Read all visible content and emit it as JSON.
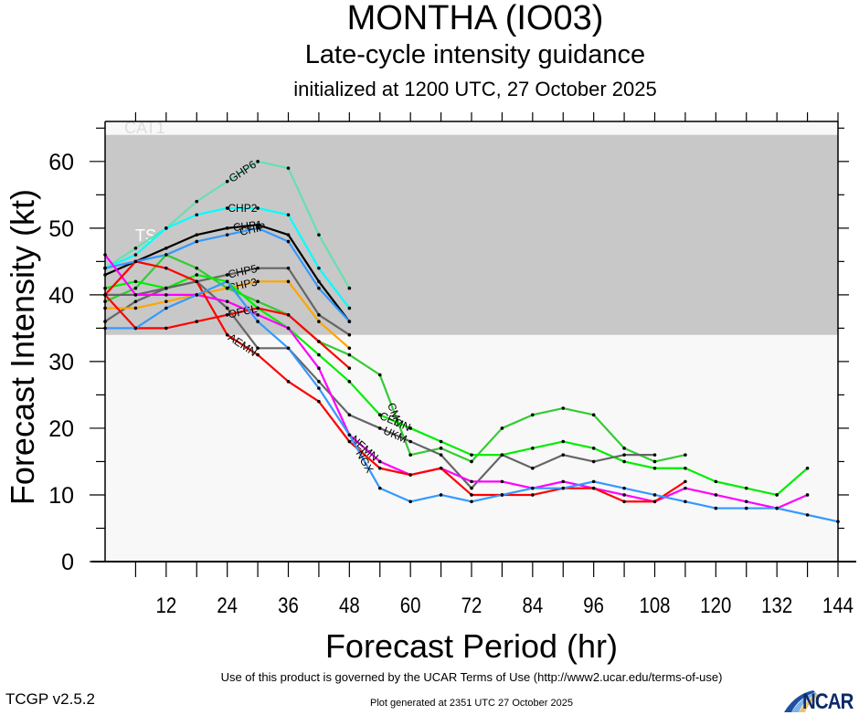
{
  "header": {
    "title": "MONTHA (IO03)",
    "subtitle": "Late-cycle intensity guidance",
    "initialized": "initialized at 1200 UTC, 27 October 2025"
  },
  "footer": {
    "terms": "Use of this product is governed by the UCAR Terms of Use (http://www2.ucar.edu/terms-of-use)",
    "generated": "Plot generated at 2351 UTC   27 October 2025",
    "version": "TCGP v2.5.2",
    "logo": "NCAR"
  },
  "chart_data": {
    "type": "line",
    "title": "MONTHA (IO03)",
    "xlabel": "Forecast Period (hr)",
    "ylabel": "Forecast Intensity (kt)",
    "xlim": [
      0,
      144
    ],
    "ylim": [
      0,
      66
    ],
    "x_ticks": [
      12,
      24,
      36,
      48,
      60,
      72,
      84,
      96,
      108,
      120,
      132,
      144
    ],
    "y_ticks": [
      0,
      10,
      20,
      30,
      40,
      50,
      60
    ],
    "bands": [
      {
        "label": "TS",
        "from": 34,
        "to": 64,
        "color": "#c8c8c8"
      },
      {
        "label": "CAT1",
        "from": 64,
        "to": 66,
        "color": "#f8f8f8"
      }
    ],
    "below_band_color": "#f8f8f8",
    "series": [
      {
        "name": "GHP6",
        "color": "#66e0b0",
        "label_at": 24,
        "x": [
          0,
          6,
          12,
          18,
          24,
          30,
          36,
          42,
          48
        ],
        "y": [
          44,
          47,
          50,
          54,
          57,
          60,
          59,
          49,
          41
        ]
      },
      {
        "name": "CHP2",
        "color": "#00ffff",
        "label_at": 27,
        "x": [
          0,
          6,
          12,
          18,
          24,
          30,
          36,
          42,
          48
        ],
        "y": [
          44,
          46,
          50,
          52,
          53,
          53,
          52,
          44,
          38
        ]
      },
      {
        "name": "CHP1",
        "color": "#000000",
        "label_at": 28,
        "x": [
          0,
          6,
          12,
          18,
          24,
          30,
          36,
          42,
          48
        ],
        "y": [
          43,
          45,
          47,
          49,
          50,
          50.5,
          49,
          42,
          36
        ]
      },
      {
        "name": "CHIP",
        "color": "#3399ff",
        "label_at": 29,
        "x": [
          0,
          6,
          12,
          18,
          24,
          30,
          36,
          42,
          48
        ],
        "y": [
          44,
          45,
          46,
          48,
          49,
          50,
          48,
          41,
          36
        ]
      },
      {
        "name": "CHP5",
        "color": "#666666",
        "label_at": 27,
        "x": [
          0,
          6,
          12,
          18,
          24,
          30,
          36,
          42,
          48
        ],
        "y": [
          36,
          39,
          41,
          42,
          43,
          44,
          44,
          37,
          34
        ]
      },
      {
        "name": "CHP3",
        "color": "#ffa500",
        "label_at": 27,
        "x": [
          0,
          6,
          12,
          18,
          24,
          30,
          36,
          42,
          48
        ],
        "y": [
          38,
          38,
          39,
          40,
          41,
          42,
          42,
          36,
          32
        ]
      },
      {
        "name": "CMC",
        "color": "#33cc33",
        "label_at": 54,
        "x": [
          0,
          6,
          12,
          18,
          24,
          30,
          36,
          42,
          48,
          54,
          60,
          66,
          72,
          78,
          84,
          90,
          96,
          102,
          108,
          114
        ],
        "y": [
          39,
          41,
          46,
          44,
          41,
          39,
          37,
          33,
          31,
          28,
          16,
          17,
          15,
          20,
          22,
          23,
          22,
          17,
          15,
          16
        ]
      },
      {
        "name": "CEMN",
        "color": "#00ee00",
        "label_at": 57,
        "x": [
          0,
          6,
          12,
          18,
          24,
          30,
          36,
          42,
          48,
          54,
          60,
          66,
          72,
          78,
          84,
          90,
          96,
          102,
          108,
          114,
          120,
          126,
          132,
          138
        ],
        "y": [
          41,
          42,
          41,
          43,
          42,
          38,
          35,
          31,
          27,
          22,
          20,
          18,
          16,
          16,
          17,
          18,
          17,
          15,
          14,
          14,
          12,
          11,
          10,
          14
        ]
      },
      {
        "name": "UKM",
        "color": "#666666",
        "label_at": 57,
        "x": [
          0,
          6,
          12,
          18,
          24,
          30,
          36,
          42,
          48,
          54,
          60,
          66,
          72,
          78,
          84,
          90,
          96,
          102,
          108
        ],
        "y": [
          40,
          40,
          41,
          42,
          38,
          32,
          32,
          27,
          22,
          20,
          18,
          16,
          11,
          16,
          14,
          16,
          15,
          16,
          16
        ]
      },
      {
        "name": "NEMN",
        "color": "#ff00ff",
        "label_at": 48,
        "x": [
          0,
          6,
          12,
          18,
          24,
          30,
          36,
          42,
          48,
          54,
          60,
          66,
          72,
          78,
          84,
          90,
          96,
          102,
          108,
          114,
          120,
          126,
          132,
          138
        ],
        "y": [
          46,
          40,
          40,
          40,
          39,
          37,
          35,
          29,
          19,
          15,
          13,
          14,
          12,
          12,
          11,
          12,
          11,
          10,
          9,
          11,
          10,
          9,
          8,
          10
        ]
      },
      {
        "name": "AEMN",
        "color": "#ff0000",
        "label_at": 24,
        "x": [
          0,
          6,
          12,
          18,
          24,
          30,
          36,
          42,
          48,
          54,
          60,
          66,
          72,
          78,
          84,
          90,
          96,
          102,
          108,
          114
        ],
        "y": [
          40,
          45,
          44,
          42,
          34,
          31,
          27,
          24,
          18,
          14,
          13,
          14,
          10,
          10,
          10,
          11,
          11,
          9,
          9,
          12
        ]
      },
      {
        "name": "OFCL",
        "color": "#ff0000",
        "label_at": 27,
        "x": [
          0,
          6,
          12,
          18,
          24,
          30,
          36,
          42,
          48
        ],
        "y": [
          40,
          35,
          35,
          36,
          37,
          38,
          37,
          33,
          29
        ]
      },
      {
        "name": "NGX",
        "color": "#3399ff",
        "label_at": 48,
        "x": [
          0,
          6,
          12,
          18,
          24,
          30,
          36,
          42,
          48,
          54,
          60,
          66,
          72,
          78,
          84,
          90,
          96,
          102,
          108,
          114,
          120,
          126,
          132,
          138,
          144
        ],
        "y": [
          35,
          35,
          38,
          40,
          42,
          36,
          32,
          26,
          19,
          11,
          9,
          10,
          9,
          10,
          11,
          11,
          12,
          11,
          10,
          9,
          8,
          8,
          8,
          7,
          6
        ]
      }
    ]
  }
}
